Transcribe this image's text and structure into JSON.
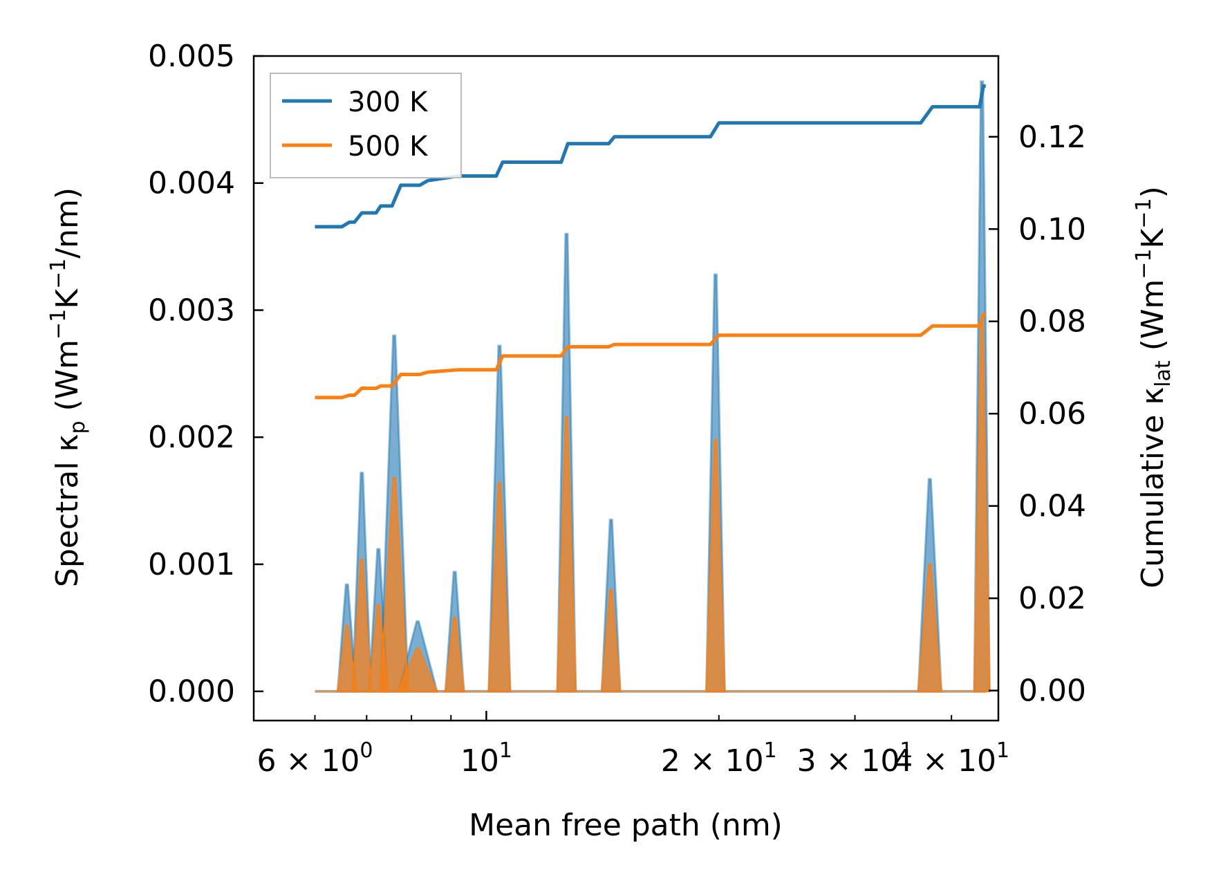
{
  "chart_data": {
    "type": "line",
    "title": "",
    "xlabel": "Mean free path (nm)",
    "xscale": "log",
    "xlim": [
      5.0,
      46.0
    ],
    "x_tick_labels": [
      {
        "value": 6,
        "base": "6 × 10",
        "exp": "0"
      },
      {
        "value": 10,
        "base": "10",
        "exp": "1"
      },
      {
        "value": 20,
        "base": "2 × 10",
        "exp": "1"
      },
      {
        "value": 30,
        "base": "3 × 10",
        "exp": "1"
      },
      {
        "value": 40,
        "base": "4 × 10",
        "exp": "1"
      }
    ],
    "y_left": {
      "label_parts": {
        "pre": "Spectral κ",
        "sub": "p",
        "mid": " (Wm",
        "sup1": "−1",
        "mid2": "K",
        "sup2": "−1",
        "post": "/nm)"
      },
      "lim": [
        -0.00023,
        0.005
      ],
      "ticks": [
        "0.000",
        "0.001",
        "0.002",
        "0.003",
        "0.004",
        "0.005"
      ],
      "tick_values": [
        0,
        0.001,
        0.002,
        0.003,
        0.004,
        0.005
      ]
    },
    "y_right": {
      "label_parts": {
        "pre": "Cumulative κ",
        "sub": "lat",
        "mid": " (Wm",
        "sup1": "−1",
        "mid2": "K",
        "sup2": "−1",
        "post": ")"
      },
      "lim": [
        -0.0065,
        0.1375
      ],
      "ticks": [
        "0.00",
        "0.02",
        "0.04",
        "0.06",
        "0.08",
        "0.10",
        "0.12"
      ],
      "tick_values": [
        0,
        0.02,
        0.04,
        0.06,
        0.08,
        0.1,
        0.12
      ]
    },
    "legend": {
      "position": "top-left",
      "entries": [
        {
          "name": "300 K",
          "color": "#1f77b4"
        },
        {
          "name": "500 K",
          "color": "#ff7f0e"
        }
      ]
    },
    "x_range": [
      6.0,
      44.3
    ],
    "spectral_peaks": [
      {
        "x": 6.6,
        "w": 0.012,
        "k300": 0.00084,
        "k500": 0.00052
      },
      {
        "x": 6.9,
        "w": 0.012,
        "k300": 0.00172,
        "k500": 0.00104
      },
      {
        "x": 7.25,
        "w": 0.012,
        "k300": 0.00112,
        "k500": 0.00068
      },
      {
        "x": 7.6,
        "w": 0.018,
        "k300": 0.0028,
        "k500": 0.00168
      },
      {
        "x": 8.15,
        "w": 0.025,
        "k300": 0.00055,
        "k500": 0.00034
      },
      {
        "x": 9.1,
        "w": 0.012,
        "k300": 0.00094,
        "k500": 0.00058
      },
      {
        "x": 10.4,
        "w": 0.014,
        "k300": 0.00272,
        "k500": 0.00164
      },
      {
        "x": 12.7,
        "w": 0.012,
        "k300": 0.0036,
        "k500": 0.00216
      },
      {
        "x": 14.5,
        "w": 0.012,
        "k300": 0.00135,
        "k500": 0.0008
      },
      {
        "x": 19.8,
        "w": 0.012,
        "k300": 0.00328,
        "k500": 0.00198
      },
      {
        "x": 37.5,
        "w": 0.015,
        "k300": 0.00167,
        "k500": 0.001
      },
      {
        "x": 43.8,
        "w": 0.01,
        "k300": 0.0048,
        "k500": 0.0029
      }
    ],
    "series": [
      {
        "name": "300 K",
        "axis": "right",
        "color": "#1f77b4",
        "x": [
          6.0,
          6.5,
          6.65,
          6.75,
          6.9,
          7.2,
          7.3,
          7.55,
          7.75,
          8.2,
          8.4,
          9.2,
          10.3,
          10.5,
          12.5,
          12.75,
          14.4,
          14.65,
          19.5,
          20.0,
          36.5,
          37.8,
          43.5,
          44.0,
          44.3
        ],
        "y": [
          0.1005,
          0.1005,
          0.1015,
          0.1015,
          0.1035,
          0.1035,
          0.105,
          0.105,
          0.1095,
          0.1095,
          0.1105,
          0.1115,
          0.1115,
          0.1145,
          0.1145,
          0.1185,
          0.1185,
          0.12,
          0.12,
          0.123,
          0.123,
          0.1265,
          0.1265,
          0.131,
          0.131
        ]
      },
      {
        "name": "500 K",
        "axis": "right",
        "color": "#ff7f0e",
        "x": [
          6.0,
          6.5,
          6.65,
          6.75,
          6.9,
          7.2,
          7.3,
          7.55,
          7.75,
          8.2,
          8.4,
          9.2,
          10.3,
          10.5,
          12.5,
          12.75,
          14.4,
          14.65,
          19.5,
          20.0,
          36.5,
          37.8,
          43.5,
          44.0,
          44.3
        ],
        "y": [
          0.0635,
          0.0635,
          0.064,
          0.064,
          0.0655,
          0.0655,
          0.066,
          0.066,
          0.0685,
          0.0685,
          0.069,
          0.0695,
          0.0695,
          0.0725,
          0.0725,
          0.0745,
          0.0745,
          0.075,
          0.075,
          0.077,
          0.077,
          0.079,
          0.079,
          0.0815,
          0.0815
        ]
      }
    ]
  }
}
